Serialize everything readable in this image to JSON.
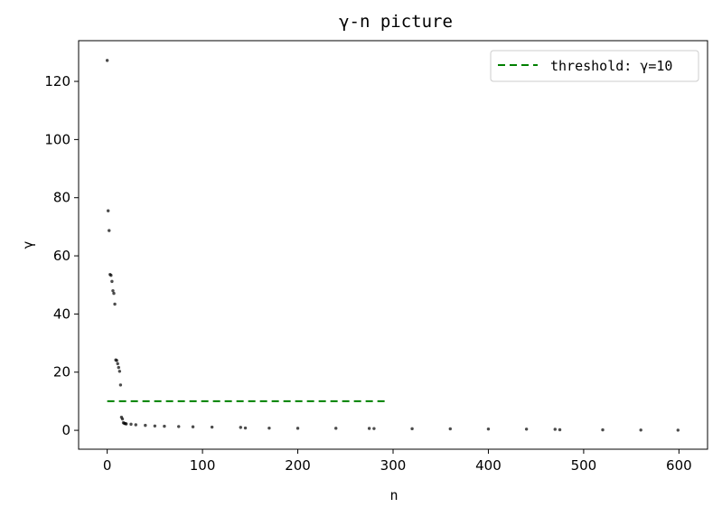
{
  "chart_data": {
    "type": "scatter",
    "title": "γ-n picture",
    "xlabel": "n",
    "ylabel": "γ",
    "xlim": [
      -30,
      630
    ],
    "ylim": [
      -6.5,
      134
    ],
    "xticks": [
      0,
      100,
      200,
      300,
      400,
      500,
      600
    ],
    "yticks": [
      0,
      20,
      40,
      60,
      80,
      100,
      120
    ],
    "grid": false,
    "legend_position": "top-right",
    "series": [
      {
        "name": "",
        "kind": "scatter",
        "color": "#000000",
        "points": [
          [
            0,
            127.2
          ],
          [
            1,
            75.5
          ],
          [
            2,
            68.7
          ],
          [
            3,
            53.6
          ],
          [
            4,
            53.3
          ],
          [
            5,
            51.2
          ],
          [
            6,
            48.0
          ],
          [
            7,
            47.1
          ],
          [
            8,
            43.4
          ],
          [
            9,
            24.2
          ],
          [
            10,
            24.0
          ],
          [
            11,
            22.9
          ],
          [
            12,
            21.6
          ],
          [
            13,
            20.3
          ],
          [
            14,
            15.6
          ],
          [
            15,
            4.5
          ],
          [
            16,
            3.9
          ],
          [
            17,
            2.6
          ],
          [
            18,
            2.4
          ],
          [
            19,
            2.3
          ],
          [
            20,
            2.2
          ],
          [
            25,
            2.1
          ],
          [
            30,
            1.9
          ],
          [
            40,
            1.7
          ],
          [
            50,
            1.5
          ],
          [
            60,
            1.4
          ],
          [
            75,
            1.3
          ],
          [
            90,
            1.2
          ],
          [
            110,
            1.1
          ],
          [
            140,
            1.0
          ],
          [
            145,
            0.8
          ],
          [
            170,
            0.75
          ],
          [
            200,
            0.7
          ],
          [
            240,
            0.7
          ],
          [
            275,
            0.65
          ],
          [
            280,
            0.6
          ],
          [
            320,
            0.55
          ],
          [
            360,
            0.5
          ],
          [
            400,
            0.45
          ],
          [
            440,
            0.4
          ],
          [
            470,
            0.35
          ],
          [
            475,
            0.2
          ],
          [
            520,
            0.15
          ],
          [
            560,
            0.1
          ],
          [
            599,
            0.05
          ]
        ]
      },
      {
        "name": "threshold: γ=10",
        "kind": "line",
        "style": "dashed",
        "color": "#008000",
        "x": [
          0,
          295
        ],
        "y": [
          10,
          10
        ]
      }
    ]
  }
}
